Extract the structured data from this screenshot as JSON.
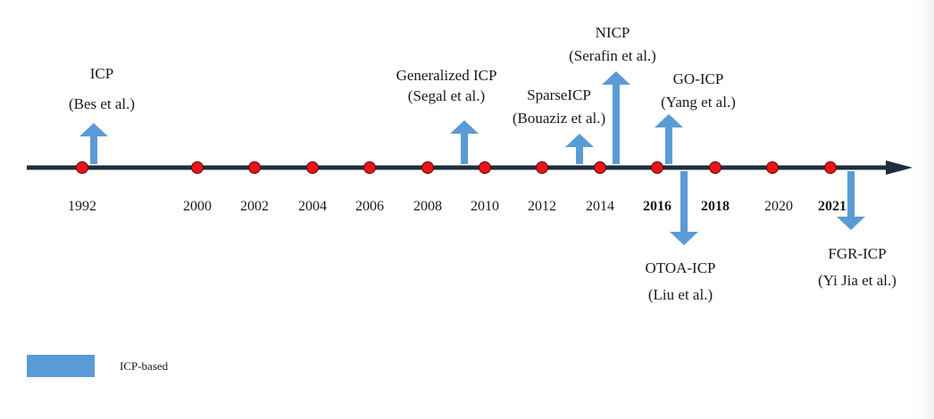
{
  "colors": {
    "arrow": "#5b9bd5",
    "axis": "#1f2d3d",
    "dot": "#e8141a",
    "text": "#1a1a1a"
  },
  "timeline": {
    "years": [
      "1992",
      "2000",
      "2002",
      "2004",
      "2006",
      "2008",
      "2010",
      "2012",
      "2014",
      "2016",
      "2018",
      "2020",
      "2021"
    ],
    "bold_years": [
      "2016",
      "2018",
      "2021"
    ]
  },
  "methods": [
    {
      "id": "icp",
      "name": "ICP",
      "authors": "(Bes et al.)",
      "direction": "up",
      "year": 1992
    },
    {
      "id": "generalized-icp",
      "name": "Generalized ICP",
      "authors": "(Segal et al.)",
      "direction": "up",
      "year": 2009
    },
    {
      "id": "sparse-icp",
      "name": "SparseICP",
      "authors": "(Bouaziz et al.)",
      "direction": "up",
      "year": 2013
    },
    {
      "id": "nicp",
      "name": "NICP",
      "authors": "(Serafin et al.)",
      "direction": "up",
      "year": 2014
    },
    {
      "id": "go-icp",
      "name": "GO-ICP",
      "authors": "(Yang et al.)",
      "direction": "up",
      "year": 2016
    },
    {
      "id": "otoa-icp",
      "name": "OTOA-ICP",
      "authors": "(Liu et al.)",
      "direction": "down",
      "year": 2016
    },
    {
      "id": "fgr-icp",
      "name": "FGR-ICP",
      "authors": "(Yi Jia et al.)",
      "direction": "down",
      "year": 2021
    }
  ],
  "legend": {
    "label": "ICP-based"
  }
}
